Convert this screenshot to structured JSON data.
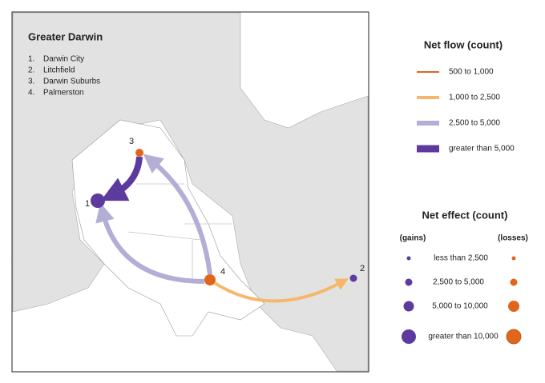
{
  "map": {
    "title": "Greater Darwin",
    "regions": [
      {
        "number": "1.",
        "name": "Darwin City"
      },
      {
        "number": "2.",
        "name": "Litchfield"
      },
      {
        "number": "3.",
        "name": "Darwin Suburbs"
      },
      {
        "number": "4.",
        "name": "Palmerston"
      }
    ],
    "node_labels": [
      "1",
      "2",
      "3",
      "4"
    ]
  },
  "legend": {
    "flow_title": "Net flow (count)",
    "flow_items": [
      "500  to 1,000",
      "1,000  to 2,500",
      "2,500  to 5,000",
      "greater than 5,000"
    ],
    "effect_title": "Net effect (count)",
    "gains": "(gains)",
    "losses": "(losses)",
    "effect_items": [
      "less than 2,500",
      "2,500  to 5,000",
      "5,000  to 10,000",
      "greater than 10,000"
    ]
  }
}
